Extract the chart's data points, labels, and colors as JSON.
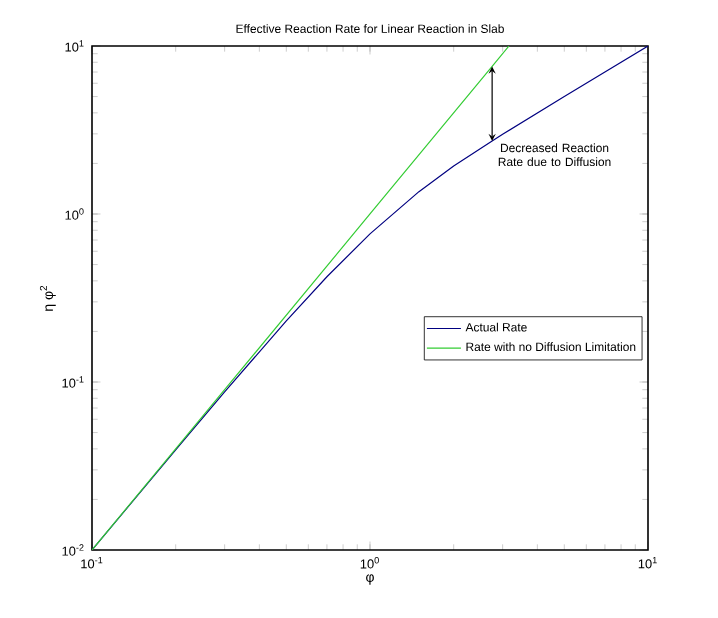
{
  "chart_data": {
    "type": "line",
    "title": "Effective Reaction Rate for Linear Reaction in Slab",
    "xlabel": "φ",
    "ylabel": "η φ$^{2}$",
    "log": "xy",
    "xlim": [
      0.1,
      10
    ],
    "ylim": [
      0.01,
      10
    ],
    "xticks": [
      {
        "value": 0.1,
        "label": "10$^{-1}$"
      },
      {
        "value": 1,
        "label": "10$^{0}$"
      },
      {
        "value": 10,
        "label": "10$^{1}$"
      }
    ],
    "yticks": [
      {
        "value": 0.01,
        "label": "10$^{-2}$"
      },
      {
        "value": 0.1,
        "label": "10$^{-1}$"
      },
      {
        "value": 1,
        "label": "10$^{0}$"
      },
      {
        "value": 10,
        "label": "10$^{1}$"
      }
    ],
    "legend": "right",
    "grid": false,
    "series": [
      {
        "name": "Actual Rate",
        "color": "#000080",
        "x": [
          0.1,
          0.2,
          0.3,
          0.5,
          0.7,
          1,
          1.5,
          2,
          2.75,
          3,
          5,
          7,
          10
        ],
        "values": [
          0.01,
          0.0395,
          0.0874,
          0.231,
          0.423,
          0.762,
          1.358,
          1.928,
          2.72,
          2.985,
          5.0,
          7.0,
          10
        ]
      },
      {
        "name": "Rate with no Diffusion Limitation",
        "color": "#33cc33",
        "x": [
          0.1,
          0.3,
          1,
          2.75,
          3.162
        ],
        "values": [
          0.01,
          0.09,
          1,
          7.56,
          10
        ]
      }
    ],
    "annotations": [
      {
        "text": "Decreased Reaction Rate due to Diffusion",
        "x": 2.75,
        "y": 2.72
      }
    ]
  }
}
